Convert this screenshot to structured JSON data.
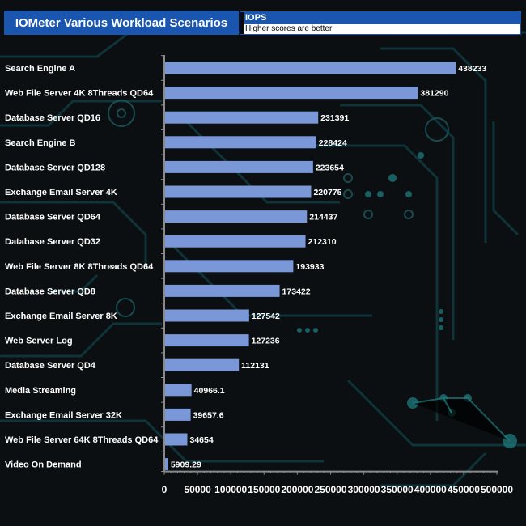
{
  "header": {
    "title": "IOMeter Various Workload Scenarios",
    "legend_metric": "IOPS",
    "legend_note": "Higher scores are better"
  },
  "chart_data": {
    "type": "bar",
    "orientation": "horizontal",
    "title": "IOMeter Various Workload Scenarios",
    "xlabel": "",
    "ylabel": "",
    "xlim": [
      0,
      500000
    ],
    "x_ticks": [
      0,
      50000,
      100000,
      150000,
      200000,
      250000,
      300000,
      350000,
      400000,
      450000,
      500000
    ],
    "grid": false,
    "legend_placement": "top-right",
    "bar_color": "#7a97d8",
    "series": [
      {
        "name": "IOPS",
        "values": [
          438233,
          381290,
          231391,
          228424,
          223654,
          220775,
          214437,
          212310,
          193933,
          173422,
          127542,
          127236,
          112131,
          40966.1,
          39657.6,
          34654,
          5909.29
        ]
      }
    ],
    "categories": [
      "Search Engine A",
      "Web File Server 4K 8Threads QD64",
      "Database Server QD16",
      "Search Engine B",
      "Database Server QD128",
      "Exchange Email Server 4K",
      "Database Server QD64",
      "Database Server QD32",
      "Web File Server 8K 8Threads QD64",
      "Database Server QD8",
      "Exchange Email Server 8K",
      "Web Server Log",
      "Database Server QD4",
      "Media Streaming",
      "Exchange Email Server 32K",
      "Web File Server 64K 8Threads QD64",
      "Video On Demand"
    ],
    "value_labels": [
      "438233",
      "381290",
      "231391",
      "228424",
      "223654",
      "220775",
      "214437",
      "212310",
      "193933",
      "173422",
      "127542",
      "127236",
      "112131",
      "40966.1",
      "39657.6",
      "34654",
      "5909.29"
    ]
  }
}
